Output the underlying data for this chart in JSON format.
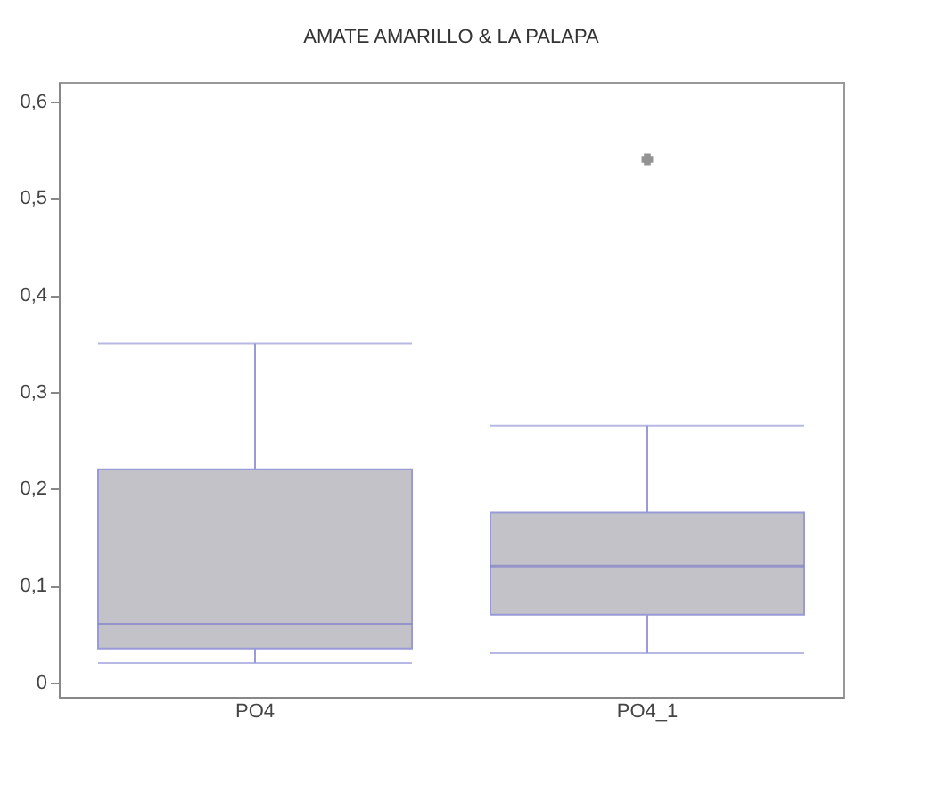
{
  "chart_data": {
    "type": "box",
    "title": "AMATE AMARILLO & LA PALAPA",
    "categories": [
      "PO4",
      "PO4_1"
    ],
    "boxes": [
      {
        "low": 0.02,
        "q1": 0.035,
        "median": 0.06,
        "q3": 0.22,
        "high": 0.35
      },
      {
        "low": 0.03,
        "q1": 0.07,
        "median": 0.12,
        "q3": 0.175,
        "high": 0.265,
        "outliers": [
          0.54
        ]
      }
    ],
    "color": "#c2c2c8",
    "ylim": [
      -0.015,
      0.62
    ],
    "yticks": [
      {
        "value": 0,
        "label": "0"
      },
      {
        "value": 0.1,
        "label": "0,1"
      },
      {
        "value": 0.2,
        "label": "0,2"
      },
      {
        "value": 0.3,
        "label": "0,3"
      },
      {
        "value": 0.4,
        "label": "0,4"
      },
      {
        "value": 0.5,
        "label": "0,5"
      },
      {
        "value": 0.6,
        "label": "0,6"
      }
    ],
    "grid": false
  }
}
